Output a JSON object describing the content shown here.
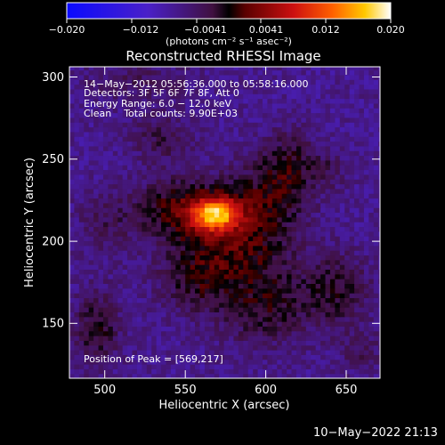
{
  "chart_data": {
    "type": "heatmap",
    "title": "Reconstructed RHESSI Image",
    "xlabel": "Heliocentric X (arcsec)",
    "ylabel": "Heliocentric Y (arcsec)",
    "xlim": [
      478,
      671
    ],
    "ylim": [
      113,
      310
    ],
    "x_ticks": [
      500,
      550,
      600,
      650
    ],
    "y_ticks": [
      150,
      200,
      250,
      300
    ],
    "colorbar": {
      "ticks": [
        "−0.020",
        "−0.012",
        "−0.0041",
        "0.0041",
        "0.012",
        "0.020"
      ],
      "range": [
        -0.02,
        0.02
      ],
      "label": "(photons cm⁻² s⁻¹ asec⁻²)"
    },
    "annotations": [
      "14−May−2012 05:56:36.000 to 05:58:16.000",
      "Detectors: 3F 5F 6F 7F 8F, Att 0",
      "Energy Range: 6.0 − 12.0 keV",
      "Clean    Total counts: 9.90E+03"
    ],
    "peak_label": "Position of Peak = [569,217]",
    "peak": {
      "x": 569,
      "y": 217,
      "value": 0.02
    },
    "blobs": [
      {
        "x": 569,
        "y": 217,
        "sx": 10,
        "sy": 7,
        "a": 0.017
      },
      {
        "x": 550,
        "y": 220,
        "sx": 22,
        "sy": 14,
        "a": 0.008
      },
      {
        "x": 600,
        "y": 225,
        "sx": 18,
        "sy": 18,
        "a": 0.006
      },
      {
        "x": 615,
        "y": 250,
        "sx": 12,
        "sy": 14,
        "a": 0.005
      },
      {
        "x": 580,
        "y": 195,
        "sx": 22,
        "sy": 15,
        "a": 0.006
      },
      {
        "x": 555,
        "y": 175,
        "sx": 16,
        "sy": 14,
        "a": 0.005
      },
      {
        "x": 600,
        "y": 160,
        "sx": 22,
        "sy": 18,
        "a": 0.006
      },
      {
        "x": 645,
        "y": 170,
        "sx": 14,
        "sy": 16,
        "a": 0.005
      },
      {
        "x": 535,
        "y": 265,
        "sx": 14,
        "sy": 10,
        "a": 0.004
      },
      {
        "x": 495,
        "y": 145,
        "sx": 10,
        "sy": 16,
        "a": 0.006
      },
      {
        "x": 500,
        "y": 210,
        "sx": 12,
        "sy": 14,
        "a": 0.003
      },
      {
        "x": 520,
        "y": 300,
        "sx": 25,
        "sy": 8,
        "a": 0.003
      },
      {
        "x": 640,
        "y": 245,
        "sx": 8,
        "sy": 8,
        "a": 0.003
      },
      {
        "x": 660,
        "y": 130,
        "sx": 10,
        "sy": 10,
        "a": 0.003
      }
    ],
    "background": -0.0065,
    "noise": 0.004,
    "pixel_size": 3
  },
  "timestamp": "10−May−2022 21:13"
}
